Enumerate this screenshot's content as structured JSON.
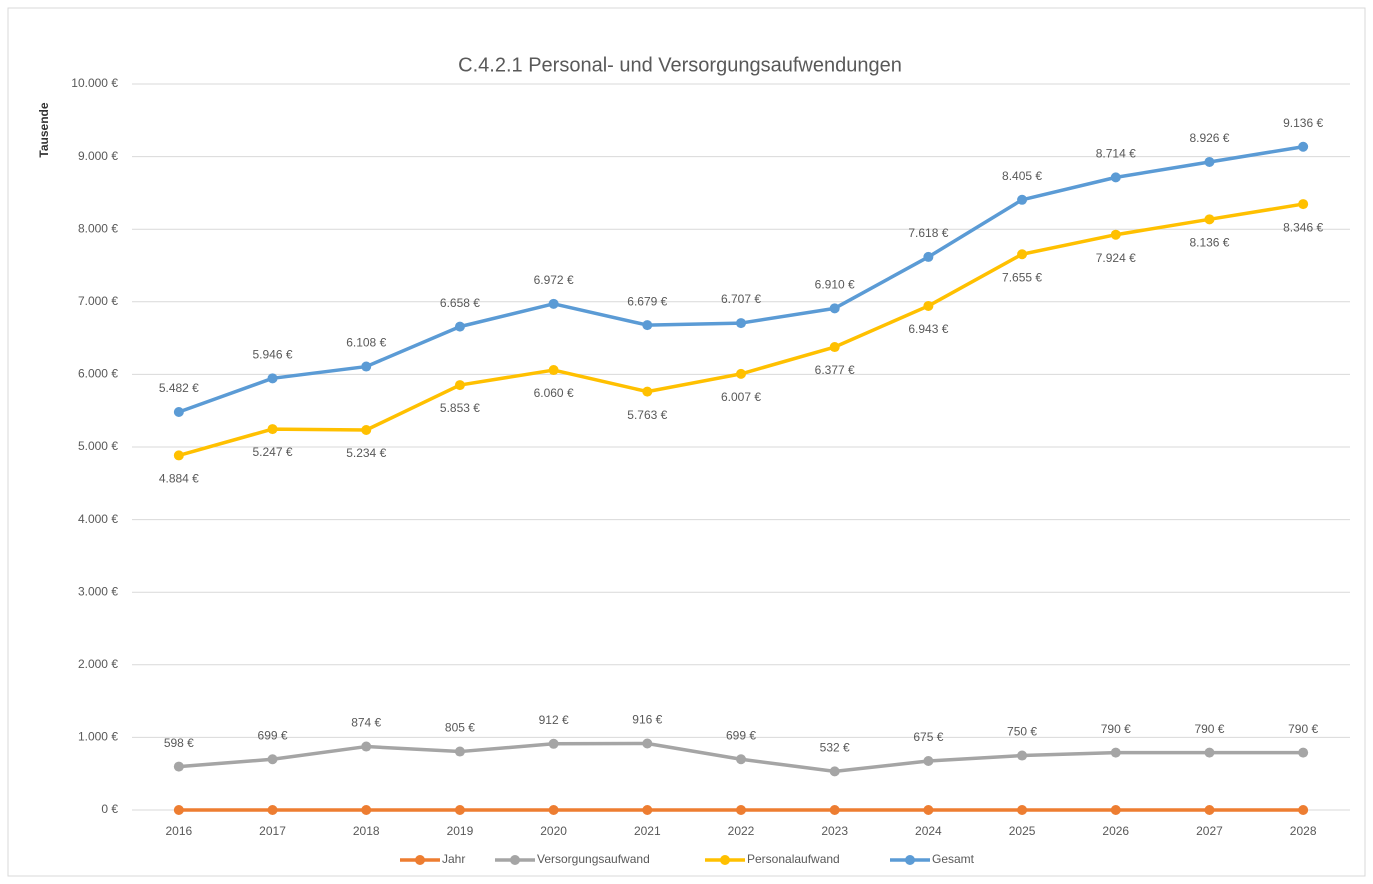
{
  "chart_data": {
    "type": "line",
    "title": "C.4.2.1 Personal- und Versorgungsaufwendungen",
    "y_label": "Tausende",
    "categories": [
      "2016",
      "2017",
      "2018",
      "2019",
      "2020",
      "2021",
      "2022",
      "2023",
      "2024",
      "2025",
      "2026",
      "2027",
      "2028"
    ],
    "ylim": [
      0,
      10000
    ],
    "yticks": [
      {
        "value": 0,
        "label": "0 €"
      },
      {
        "value": 1000,
        "label": "1.000 €"
      },
      {
        "value": 2000,
        "label": "2.000 €"
      },
      {
        "value": 3000,
        "label": "3.000 €"
      },
      {
        "value": 4000,
        "label": "4.000 €"
      },
      {
        "value": 5000,
        "label": "5.000 €"
      },
      {
        "value": 6000,
        "label": "6.000 €"
      },
      {
        "value": 7000,
        "label": "7.000 €"
      },
      {
        "value": 8000,
        "label": "8.000 €"
      },
      {
        "value": 9000,
        "label": "9.000 €"
      },
      {
        "value": 10000,
        "label": "10.000 €"
      }
    ],
    "grid": true,
    "legend": "bottom",
    "series": [
      {
        "name": "Jahr",
        "color": "#ed7d31",
        "values": [
          0,
          0,
          0,
          0,
          0,
          0,
          0,
          0,
          0,
          0,
          0,
          0,
          0
        ]
      },
      {
        "name": "Versorgungsaufwand",
        "color": "#a5a5a5",
        "values": [
          598,
          699,
          874,
          805,
          912,
          916,
          699,
          532,
          675,
          750,
          790,
          790,
          790
        ],
        "value_labels": [
          "598 €",
          "699 €",
          "874 €",
          "805 €",
          "912 €",
          "916 €",
          "699 €",
          "532 €",
          "675 €",
          "750 €",
          "790 €",
          "790 €",
          "790 €"
        ]
      },
      {
        "name": "Personalaufwand",
        "color": "#ffc000",
        "values": [
          4884,
          5247,
          5234,
          5853,
          6060,
          5763,
          6007,
          6377,
          6943,
          7655,
          7924,
          8136,
          8346
        ],
        "value_labels": [
          "4.884 €",
          "5.247 €",
          "5.234 €",
          "5.853 €",
          "6.060 €",
          "5.763 €",
          "6.007 €",
          "6.377 €",
          "6.943 €",
          "7.655 €",
          "7.924 €",
          "8.136 €",
          "8.346 €"
        ]
      },
      {
        "name": "Gesamt",
        "color": "#5b9bd5",
        "values": [
          5482,
          5946,
          6108,
          6658,
          6972,
          6679,
          6707,
          6910,
          7618,
          8405,
          8714,
          8926,
          9136
        ],
        "value_labels": [
          "5.482 €",
          "5.946 €",
          "6.108 €",
          "6.658 €",
          "6.972 €",
          "6.679 €",
          "6.707 €",
          "6.910 €",
          "7.618 €",
          "8.405 €",
          "8.714 €",
          "8.926 €",
          "9.136 €"
        ]
      }
    ]
  }
}
